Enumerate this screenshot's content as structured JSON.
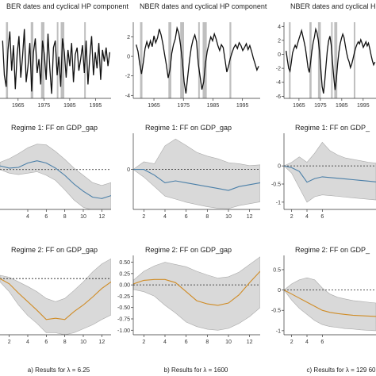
{
  "figure": {
    "captions": [
      "a) Results for  λ = 6.25",
      "b) Results for  λ = 1600",
      "c) Results for  λ = 129 60"
    ]
  },
  "colors": {
    "line": "#111111",
    "recession": "#bfbfbf",
    "regime1": "#4a7fa8",
    "regime2": "#d08c26",
    "band": "#d9d9d9",
    "band_edge": "#aaaaaa"
  },
  "chart_data": [
    {
      "id": "cyc-a",
      "type": "line",
      "title": "BER dates and cyclical HP component",
      "xlim": [
        1958,
        2001
      ],
      "ylim": [
        -1.6,
        1.7
      ],
      "xticks": [
        1965,
        1975,
        1985,
        1995
      ],
      "yticks": [],
      "recessions": [
        [
          1960.3,
          1961.1
        ],
        [
          1969.9,
          1970.9
        ],
        [
          1973.9,
          1975.2
        ],
        [
          1980.0,
          1980.5
        ],
        [
          1981.5,
          1982.9
        ],
        [
          1990.6,
          1991.2
        ]
      ],
      "series": [
        {
          "values": [
            0.9,
            -0.6,
            -1.1,
            0.5,
            1.3,
            -0.4,
            0.7,
            -1.2,
            0.3,
            1.1,
            -0.7,
            0.2,
            1.4,
            -0.9,
            -0.2,
            0.8,
            -1.3,
            0.4,
            1.0,
            -0.5,
            0.1,
            -1.0,
            0.9,
            0.3,
            -0.8,
            1.2,
            -0.3,
            -1.4,
            0.6,
            0.9,
            -0.6,
            0.2,
            -1.1,
            1.0,
            0.4,
            -0.7,
            0.5,
            -0.2,
            0.8,
            -0.9,
            0.3,
            0.6,
            -0.4,
            0.1,
            0.7,
            -0.5,
            0.9,
            -1.0,
            0.2,
            1.1,
            -0.6,
            0.4,
            -0.3,
            0.8,
            -0.8,
            0.5,
            0.0,
            0.6,
            -0.2,
            0.4
          ]
        }
      ]
    },
    {
      "id": "cyc-b",
      "type": "line",
      "title": "NBER dates and cyclical HP component",
      "xlim": [
        1958,
        2001
      ],
      "ylim": [
        -4.3,
        3.5
      ],
      "xticks": [
        1965,
        1975,
        1985,
        1995
      ],
      "yticks": [
        -4,
        -2,
        0,
        2
      ],
      "recessions": [
        [
          1960.3,
          1961.1
        ],
        [
          1969.9,
          1970.9
        ],
        [
          1973.9,
          1975.2
        ],
        [
          1980.0,
          1980.5
        ],
        [
          1981.5,
          1982.9
        ],
        [
          1990.6,
          1991.2
        ]
      ],
      "series": [
        {
          "values": [
            1.2,
            0.5,
            -0.8,
            -1.8,
            -0.6,
            0.8,
            1.5,
            0.9,
            1.6,
            1.0,
            2.1,
            1.4,
            1.9,
            2.8,
            2.2,
            1.3,
            0.2,
            -0.9,
            -2.2,
            -1.4,
            0.3,
            1.2,
            1.8,
            2.9,
            2.4,
            1.1,
            -0.5,
            -2.6,
            -3.8,
            -2.1,
            -0.4,
            0.9,
            1.7,
            2.2,
            1.5,
            -0.8,
            -2.1,
            -3.4,
            -2.6,
            -0.7,
            0.5,
            1.3,
            2.0,
            1.6,
            2.3,
            1.8,
            1.1,
            0.6,
            1.2,
            0.9,
            -0.3,
            -1.6,
            -1.0,
            -0.2,
            0.4,
            0.9,
            1.2,
            0.8,
            1.4,
            1.1,
            0.6,
            0.9,
            1.3,
            0.7,
            1.1,
            0.5,
            -0.2,
            -0.8,
            -1.4,
            -1.0
          ]
        }
      ]
    },
    {
      "id": "cyc-c",
      "type": "line",
      "title": "NBER dates and cyclical HP component",
      "xlim": [
        1958,
        2001
      ],
      "ylim": [
        -6.3,
        4.6
      ],
      "xticks": [
        1965,
        1975,
        1985,
        1995
      ],
      "yticks": [
        -6,
        -4,
        -2,
        0,
        2,
        4
      ],
      "recessions": [
        [
          1960.3,
          1961.1
        ],
        [
          1969.9,
          1970.9
        ],
        [
          1973.9,
          1975.2
        ],
        [
          1980.0,
          1980.5
        ],
        [
          1981.5,
          1982.9
        ],
        [
          1990.6,
          1991.2
        ]
      ],
      "series": [
        {
          "values": [
            0.5,
            -0.8,
            -2.0,
            -2.4,
            -1.2,
            0.2,
            0.8,
            1.3,
            0.9,
            1.6,
            2.2,
            2.8,
            3.4,
            2.6,
            1.8,
            0.9,
            -0.5,
            -1.9,
            -2.6,
            -1.2,
            0.4,
            1.7,
            2.5,
            3.6,
            3.1,
            2.0,
            0.3,
            -2.2,
            -4.6,
            -5.6,
            -3.8,
            -1.6,
            0.5,
            1.9,
            2.6,
            1.4,
            -1.0,
            -3.2,
            -5.1,
            -3.6,
            -1.4,
            0.3,
            1.5,
            2.3,
            2.9,
            2.4,
            1.3,
            0.2,
            -0.6,
            -1.1,
            -1.9,
            -1.4,
            -0.6,
            0.2,
            0.9,
            1.4,
            1.8,
            1.5,
            2.1,
            1.6,
            1.0,
            1.4,
            1.8,
            1.2,
            1.6,
            0.8,
            -0.1,
            -0.9,
            -1.5,
            -1.1
          ]
        }
      ]
    },
    {
      "id": "r1-a",
      "type": "line",
      "title": "Regime 1:  FF on GDP_gap",
      "x": [
        1,
        2,
        3,
        4,
        5,
        6,
        7,
        8,
        9,
        10,
        11,
        12,
        13
      ],
      "xlim": [
        1,
        13
      ],
      "ylim": [
        -0.55,
        0.5
      ],
      "xticks": [
        4,
        6,
        8,
        10,
        12
      ],
      "yticks": [],
      "zero_line": true,
      "series": [
        {
          "values": [
            0.05,
            0.02,
            0.03,
            0.09,
            0.12,
            0.09,
            0.02,
            -0.08,
            -0.2,
            -0.3,
            -0.38,
            -0.4,
            -0.36
          ]
        }
      ],
      "band": {
        "lower": [
          0.0,
          -0.05,
          -0.07,
          -0.05,
          -0.03,
          -0.08,
          -0.15,
          -0.28,
          -0.42,
          -0.52,
          -0.56,
          -0.57,
          -0.56
        ],
        "upper": [
          0.1,
          0.15,
          0.22,
          0.3,
          0.35,
          0.34,
          0.25,
          0.14,
          0.02,
          -0.08,
          -0.18,
          -0.22,
          -0.18
        ]
      }
    },
    {
      "id": "r1-b",
      "type": "line",
      "title": "Regime 1:  FF on GDP_gap",
      "x": [
        1,
        2,
        3,
        4,
        5,
        6,
        7,
        8,
        9,
        10,
        11,
        12,
        13
      ],
      "xlim": [
        1,
        13
      ],
      "ylim": [
        -1.05,
        0.95
      ],
      "xticks": [
        2,
        4,
        6,
        8,
        10,
        12
      ],
      "yticks": [
        0
      ],
      "zero_line": true,
      "series": [
        {
          "values": [
            0.0,
            0.0,
            -0.15,
            -0.35,
            -0.3,
            -0.35,
            -0.4,
            -0.45,
            -0.5,
            -0.55,
            -0.45,
            -0.4,
            -0.35
          ]
        }
      ],
      "band": {
        "lower": [
          0.0,
          -0.2,
          -0.45,
          -0.7,
          -0.78,
          -0.86,
          -0.92,
          -0.98,
          -1.02,
          -1.03,
          -0.95,
          -0.9,
          -0.85
        ],
        "upper": [
          0.0,
          0.2,
          0.15,
          0.62,
          0.8,
          0.63,
          0.45,
          0.35,
          0.28,
          0.18,
          0.15,
          0.1,
          0.12
        ]
      }
    },
    {
      "id": "r1-c",
      "type": "line",
      "title": "Regime 1:  FF on GDP_",
      "x": [
        1,
        2,
        3,
        4,
        5,
        6,
        7,
        8,
        9,
        10,
        11,
        12,
        13
      ],
      "xlim": [
        1,
        13
      ],
      "ylim": [
        -1.2,
        0.9
      ],
      "xticks": [
        2,
        4,
        6
      ],
      "yticks": [
        0,
        -0.5,
        -1.0
      ],
      "zero_line": true,
      "series": [
        {
          "values": [
            0.0,
            -0.05,
            -0.15,
            -0.45,
            -0.35,
            -0.3,
            -0.32,
            -0.34,
            -0.36,
            -0.38,
            -0.4,
            -0.42,
            -0.44
          ]
        }
      ],
      "band": {
        "lower": [
          0.0,
          -0.2,
          -0.6,
          -1.0,
          -0.85,
          -0.8,
          -0.82,
          -0.84,
          -0.86,
          -0.88,
          -0.9,
          -0.92,
          -0.94
        ],
        "upper": [
          0.0,
          0.1,
          0.25,
          0.1,
          0.35,
          0.65,
          0.42,
          0.3,
          0.22,
          0.18,
          0.14,
          0.1,
          0.08
        ]
      }
    },
    {
      "id": "r2-a",
      "type": "line",
      "title": "Regime 2:  FF on GDP_gap",
      "x": [
        1,
        2,
        3,
        4,
        5,
        6,
        7,
        8,
        9,
        10,
        11,
        12,
        13
      ],
      "xlim": [
        1,
        13
      ],
      "ylim": [
        -0.85,
        0.35
      ],
      "xticks": [
        2,
        4,
        6,
        8,
        10,
        12
      ],
      "yticks": [],
      "zero_line": true,
      "series": [
        {
          "values": [
            0.0,
            -0.08,
            -0.22,
            -0.35,
            -0.48,
            -0.62,
            -0.6,
            -0.62,
            -0.5,
            -0.4,
            -0.28,
            -0.15,
            -0.05
          ]
        }
      ],
      "band": {
        "lower": [
          -0.05,
          -0.2,
          -0.4,
          -0.56,
          -0.68,
          -0.82,
          -0.82,
          -0.85,
          -0.82,
          -0.76,
          -0.7,
          -0.62,
          -0.55
        ],
        "upper": [
          0.05,
          0.02,
          -0.05,
          -0.12,
          -0.2,
          -0.3,
          -0.35,
          -0.3,
          -0.18,
          -0.05,
          0.1,
          0.22,
          0.3
        ]
      }
    },
    {
      "id": "r2-b",
      "type": "line",
      "title": "Regime 2:  FF on GDP_gap",
      "x": [
        1,
        2,
        3,
        4,
        5,
        6,
        7,
        8,
        9,
        10,
        11,
        12,
        13
      ],
      "xlim": [
        1,
        13
      ],
      "ylim": [
        -1.1,
        0.65
      ],
      "xticks": [
        2,
        4,
        6,
        8,
        10,
        12
      ],
      "yticks": [
        0.5,
        0.25,
        0.0,
        -0.25,
        -0.5,
        -0.75,
        -1.0
      ],
      "ytick_labels": [
        "0.50",
        "0.25",
        "0.00",
        "-0.25",
        "-0.50",
        "-0.75",
        "-1.00"
      ],
      "zero_line": true,
      "series": [
        {
          "values": [
            0.02,
            0.1,
            0.12,
            0.12,
            0.05,
            -0.15,
            -0.35,
            -0.42,
            -0.45,
            -0.4,
            -0.22,
            0.05,
            0.3
          ]
        }
      ],
      "band": {
        "lower": [
          -0.1,
          -0.15,
          -0.25,
          -0.45,
          -0.62,
          -0.82,
          -0.92,
          -0.98,
          -1.0,
          -0.96,
          -0.85,
          -0.7,
          -0.5
        ],
        "upper": [
          0.1,
          0.3,
          0.42,
          0.5,
          0.45,
          0.4,
          0.3,
          0.22,
          0.15,
          0.18,
          0.28,
          0.45,
          0.62
        ]
      }
    },
    {
      "id": "r2-c",
      "type": "line",
      "title": "Regime 2:  FF on GDP_",
      "x": [
        1,
        2,
        3,
        4,
        5,
        6,
        7,
        8,
        9,
        10,
        11,
        12,
        13
      ],
      "xlim": [
        1,
        13
      ],
      "ylim": [
        -1.1,
        0.85
      ],
      "xticks": [
        2,
        4,
        6
      ],
      "yticks": [
        0.5,
        0.0,
        -0.5,
        -1.0
      ],
      "zero_line": true,
      "series": [
        {
          "values": [
            0.0,
            -0.1,
            -0.2,
            -0.3,
            -0.4,
            -0.5,
            -0.55,
            -0.58,
            -0.6,
            -0.62,
            -0.63,
            -0.64,
            -0.65
          ]
        }
      ],
      "band": {
        "lower": [
          0.0,
          -0.25,
          -0.45,
          -0.6,
          -0.75,
          -0.85,
          -0.9,
          -0.92,
          -0.95,
          -0.96,
          -0.98,
          -0.99,
          -1.0
        ],
        "upper": [
          0.0,
          0.15,
          0.25,
          0.3,
          0.25,
          0.05,
          -0.1,
          -0.18,
          -0.22,
          -0.26,
          -0.28,
          -0.3,
          -0.32
        ]
      }
    }
  ]
}
